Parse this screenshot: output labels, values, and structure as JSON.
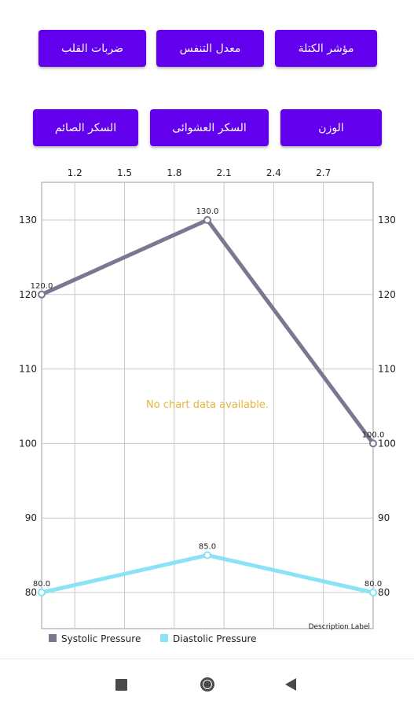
{
  "buttons_row1": [
    {
      "name": "bmi-button",
      "label": "مؤشر الكتلة"
    },
    {
      "name": "respiration-rate-button",
      "label": "معدل التنفس"
    },
    {
      "name": "heart-rate-button",
      "label": "ضربات القلب"
    }
  ],
  "buttons_row2": [
    {
      "name": "weight-button",
      "label": "الوزن"
    },
    {
      "name": "random-sugar-button",
      "label": "السكر العشوائى"
    },
    {
      "name": "fasting-sugar-button",
      "label": "السكر الصائم"
    }
  ],
  "chart_data": {
    "type": "line",
    "x_ticks": [
      "1.2",
      "1.5",
      "1.8",
      "2.1",
      "2.4",
      "2.7"
    ],
    "x_range": [
      1.0,
      3.0
    ],
    "y_ticks": [
      80,
      90,
      100,
      110,
      120,
      130
    ],
    "ylim": [
      75,
      135
    ],
    "grid": true,
    "no_data_text": "No chart data available.",
    "description_label": "Description Label",
    "legend_position": "bottom-left",
    "series": [
      {
        "name": "Systolic Pressure",
        "color": "#7b7790",
        "points": [
          {
            "x": 1.0,
            "y": 120,
            "label": "120.0"
          },
          {
            "x": 2.0,
            "y": 130,
            "label": "130.0"
          },
          {
            "x": 3.0,
            "y": 100,
            "label": "100.0"
          }
        ]
      },
      {
        "name": "Diastolic Pressure",
        "color": "#8ae3f5",
        "points": [
          {
            "x": 1.0,
            "y": 80,
            "label": "80.0"
          },
          {
            "x": 2.0,
            "y": 85,
            "label": "85.0"
          },
          {
            "x": 3.0,
            "y": 80,
            "label": "80.0"
          }
        ]
      }
    ]
  },
  "navbar": {
    "icons": [
      "recents-icon",
      "home-icon",
      "back-icon"
    ]
  }
}
